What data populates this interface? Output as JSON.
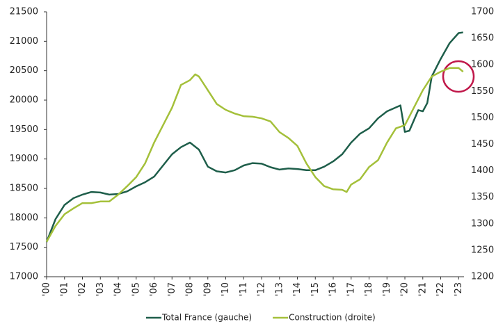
{
  "chart_data": {
    "type": "line",
    "xlim": [
      2000,
      2023.3
    ],
    "xticks": [
      {
        "value": 2000,
        "label": "'00"
      },
      {
        "value": 2001,
        "label": "'01"
      },
      {
        "value": 2002,
        "label": "'02"
      },
      {
        "value": 2003,
        "label": "'03"
      },
      {
        "value": 2004,
        "label": "'04"
      },
      {
        "value": 2005,
        "label": "'05"
      },
      {
        "value": 2006,
        "label": "'06"
      },
      {
        "value": 2007,
        "label": "'07"
      },
      {
        "value": 2008,
        "label": "'08"
      },
      {
        "value": 2009,
        "label": "'09"
      },
      {
        "value": 2010,
        "label": "'10"
      },
      {
        "value": 2011,
        "label": "'11"
      },
      {
        "value": 2012,
        "label": "'12"
      },
      {
        "value": 2013,
        "label": "'13"
      },
      {
        "value": 2014,
        "label": "'14"
      },
      {
        "value": 2015,
        "label": "'15"
      },
      {
        "value": 2016,
        "label": "'16"
      },
      {
        "value": 2017,
        "label": "'17"
      },
      {
        "value": 2018,
        "label": "'18"
      },
      {
        "value": 2019,
        "label": "'19"
      },
      {
        "value": 2020,
        "label": "'20"
      },
      {
        "value": 2021,
        "label": "'21"
      },
      {
        "value": 2022,
        "label": "'22"
      },
      {
        "value": 2023,
        "label": "'23"
      }
    ],
    "ylim": [
      17000,
      21500
    ],
    "yticks": [
      17000,
      17500,
      18000,
      18500,
      19000,
      19500,
      20000,
      20500,
      21000,
      21500
    ],
    "y2lim": [
      1200,
      1700
    ],
    "y2ticks": [
      1200,
      1250,
      1300,
      1350,
      1400,
      1450,
      1500,
      1550,
      1600,
      1650,
      1700
    ],
    "series": [
      {
        "name": "Total France (gauche)",
        "color": "#1e5e4a",
        "x": [
          2000,
          2000.5,
          2001,
          2001.5,
          2002,
          2002.5,
          2003,
          2003.5,
          2004,
          2004.5,
          2005,
          2005.5,
          2006,
          2006.5,
          2007,
          2007.5,
          2008,
          2008.5,
          2009,
          2009.5,
          2010,
          2010.5,
          2011,
          2011.5,
          2012,
          2012.5,
          2013,
          2013.5,
          2014,
          2014.5,
          2015,
          2015.5,
          2016,
          2016.5,
          2017,
          2017.5,
          2018,
          2018.5,
          2019,
          2019.75,
          2020,
          2020.25,
          2020.75,
          2021,
          2021.25,
          2021.5,
          2022,
          2022.5,
          2023,
          2023.25
        ],
        "values": [
          17590,
          17980,
          18220,
          18335,
          18395,
          18440,
          18430,
          18395,
          18405,
          18450,
          18535,
          18605,
          18700,
          18890,
          19080,
          19200,
          19280,
          19160,
          18870,
          18790,
          18770,
          18810,
          18890,
          18930,
          18920,
          18860,
          18820,
          18840,
          18830,
          18810,
          18810,
          18870,
          18960,
          19080,
          19280,
          19430,
          19520,
          19690,
          19810,
          19910,
          19460,
          19480,
          19830,
          19810,
          19950,
          20400,
          20700,
          20970,
          21140,
          21150
        ]
      },
      {
        "name": "Construction (droite)",
        "color": "#a4c03a",
        "axis": "y2",
        "x": [
          2000,
          2000.5,
          2001,
          2001.5,
          2002,
          2002.5,
          2003,
          2003.5,
          2004,
          2004.5,
          2005,
          2005.5,
          2006,
          2006.5,
          2007,
          2007.5,
          2008,
          2008.3,
          2008.5,
          2009,
          2009.5,
          2010,
          2010.5,
          2011,
          2011.5,
          2012,
          2012.5,
          2013,
          2013.5,
          2014,
          2014.5,
          2015,
          2015.5,
          2016,
          2016.5,
          2016.75,
          2017,
          2017.5,
          2018,
          2018.5,
          2019,
          2019.5,
          2020,
          2020.5,
          2021,
          2021.5,
          2022,
          2022.5,
          2023,
          2023.25
        ],
        "values": [
          1266,
          1296,
          1318,
          1329,
          1339,
          1339,
          1342,
          1342,
          1355,
          1371,
          1388,
          1414,
          1453,
          1486,
          1519,
          1562,
          1571,
          1582,
          1578,
          1552,
          1526,
          1515,
          1508,
          1503,
          1502,
          1499,
          1493,
          1473,
          1462,
          1447,
          1414,
          1388,
          1371,
          1365,
          1364,
          1360,
          1374,
          1384,
          1407,
          1420,
          1453,
          1480,
          1486,
          1519,
          1552,
          1578,
          1587,
          1594,
          1594,
          1587
        ]
      }
    ]
  }
}
